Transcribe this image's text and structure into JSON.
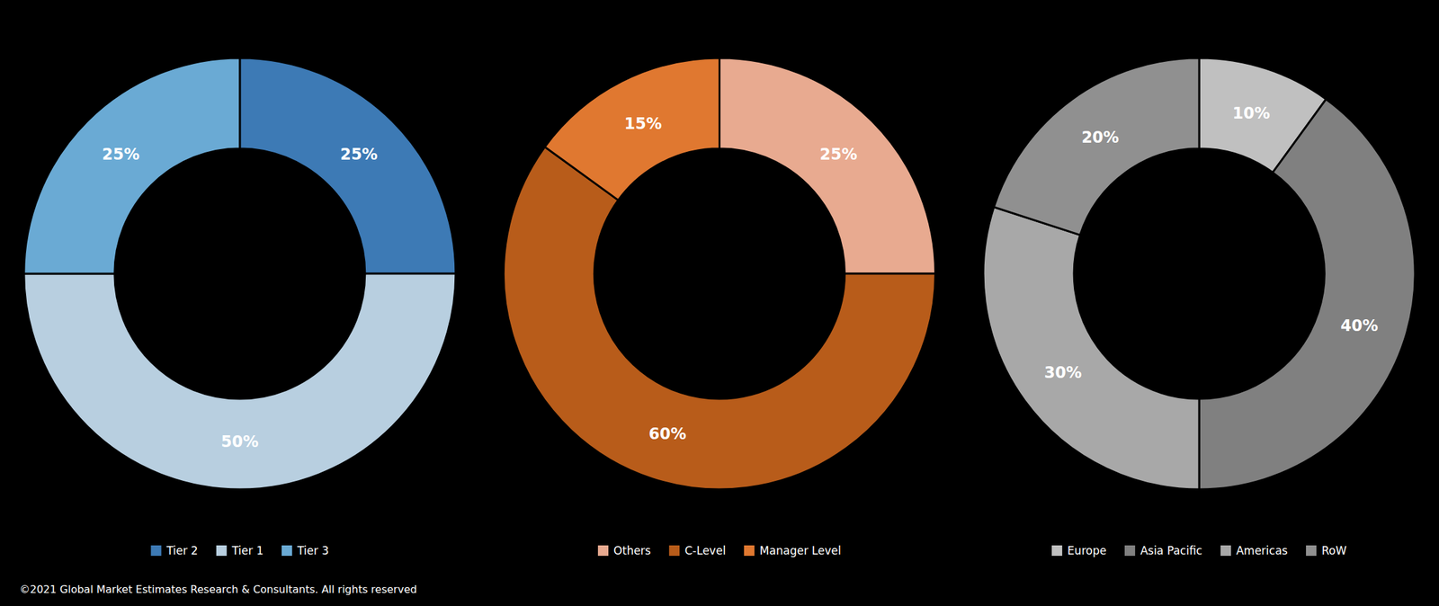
{
  "chart_data": [
    {
      "type": "pie",
      "categories": [
        "Tier 2",
        "Tier 1",
        "Tier 3"
      ],
      "values": [
        25,
        50,
        25
      ],
      "value_labels": [
        "25%",
        "50%",
        "25%"
      ],
      "colors": [
        "#3d7ab5",
        "#b8cfe0",
        "#6aaad4"
      ],
      "data_labels": true,
      "legend": "bottom"
    },
    {
      "type": "pie",
      "categories": [
        "Others",
        "C-Level",
        "Manager Level"
      ],
      "values": [
        25,
        60,
        15
      ],
      "value_labels": [
        "25%",
        "60%",
        "15%"
      ],
      "colors": [
        "#e8aa90",
        "#b85c1a",
        "#e07830"
      ],
      "data_labels": true,
      "legend": "bottom"
    },
    {
      "type": "pie",
      "categories": [
        "Europe",
        "Asia Pacific",
        "Americas",
        "RoW"
      ],
      "values": [
        10,
        40,
        30,
        20
      ],
      "value_labels": [
        "10%",
        "40%",
        "30%",
        "20%"
      ],
      "colors": [
        "#c0c0c0",
        "#808080",
        "#a8a8a8",
        "#909090"
      ],
      "data_labels": true,
      "legend": "bottom"
    }
  ],
  "footer": "©2021 Global Market Estimates Research & Consultants. All rights reserved"
}
